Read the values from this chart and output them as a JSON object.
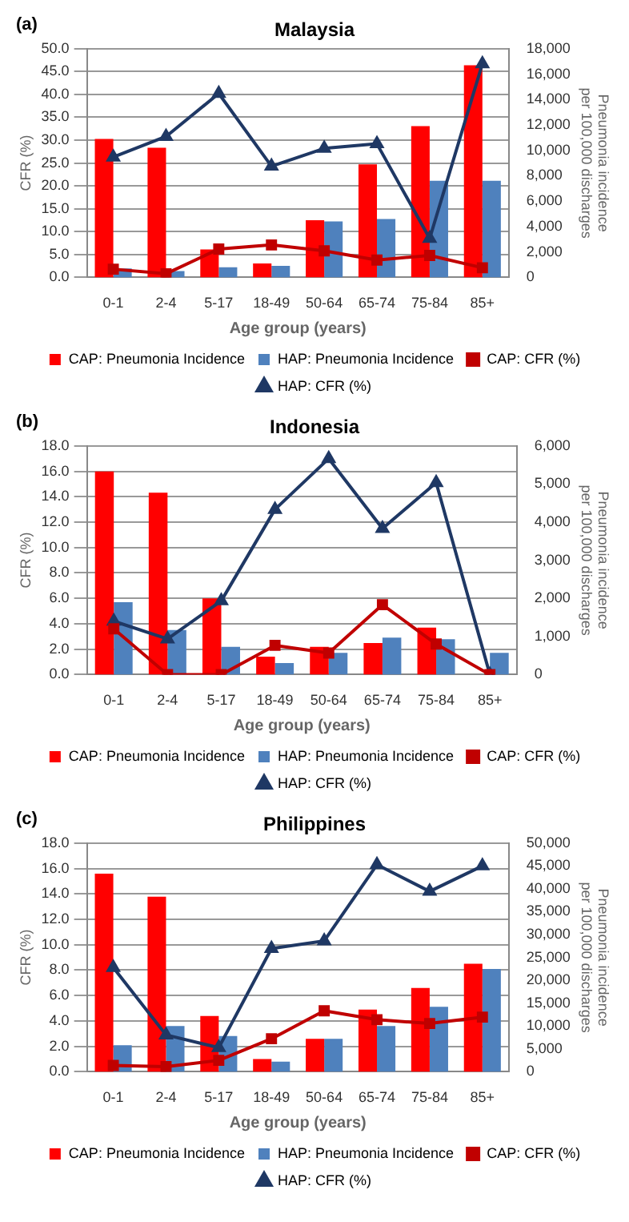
{
  "chart_data": [
    {
      "type": "bar",
      "title": "Malaysia",
      "annotations": [
        "(a)"
      ],
      "xlabel": "Age group (years)",
      "ylabel": "CFR (%)",
      "y2label": "Pneumonia incidence\nper 100,000 discharges",
      "categories": [
        "0-1",
        "2-4",
        "5-17",
        "18-49",
        "50-64",
        "65-74",
        "75-84",
        "85+"
      ],
      "series": [
        {
          "name": "CAP: Pneumonia Incidence",
          "axis": "y2",
          "color": "#ff0000",
          "values": [
            10900,
            10200,
            2200,
            1100,
            4500,
            8900,
            11900,
            16700
          ]
        },
        {
          "name": "HAP: Pneumonia Incidence",
          "axis": "y2",
          "color": "#4f81bd",
          "values": [
            700,
            500,
            800,
            900,
            4400,
            4600,
            7600,
            7600
          ]
        },
        {
          "name": "CAP: CFR (%)",
          "type": "line",
          "axis": "y",
          "color": "#c00000",
          "marker": "square",
          "values": [
            1.8,
            0.8,
            6.2,
            7.1,
            5.8,
            3.8,
            4.8,
            2.1
          ]
        },
        {
          "name": "HAP: CFR (%)",
          "type": "line",
          "axis": "y",
          "color": "#1f3864",
          "marker": "triangle",
          "values": [
            26.3,
            30.8,
            40.2,
            24.3,
            28.2,
            29.2,
            8.5,
            46.7
          ]
        }
      ],
      "ylim": [
        0,
        50
      ],
      "yticks": [
        {
          "value": 0,
          "label": "0.0"
        },
        {
          "value": 5,
          "label": "5.0"
        },
        {
          "value": 10,
          "label": "10.0"
        },
        {
          "value": 15,
          "label": "15.0"
        },
        {
          "value": 20,
          "label": "20.0"
        },
        {
          "value": 25,
          "label": "25.0"
        },
        {
          "value": 30,
          "label": "30.0"
        },
        {
          "value": 35,
          "label": "35.0"
        },
        {
          "value": 40,
          "label": "40.0"
        },
        {
          "value": 45,
          "label": "45.0"
        },
        {
          "value": 50,
          "label": "50.0"
        }
      ],
      "y2lim": [
        0,
        18000
      ],
      "y2ticks": [
        {
          "value": 0,
          "label": "0"
        },
        {
          "value": 2000,
          "label": "2,000"
        },
        {
          "value": 4000,
          "label": "4,000"
        },
        {
          "value": 6000,
          "label": "6,000"
        },
        {
          "value": 8000,
          "label": "8,000"
        },
        {
          "value": 10000,
          "label": "10,000"
        },
        {
          "value": 12000,
          "label": "12,000"
        },
        {
          "value": 14000,
          "label": "14,000"
        },
        {
          "value": 16000,
          "label": "16,000"
        },
        {
          "value": 18000,
          "label": "18,000"
        }
      ],
      "grid": "y",
      "legend": "bottom"
    },
    {
      "type": "bar",
      "title": "Indonesia",
      "annotations": [
        "(b)"
      ],
      "xlabel": "Age group (years)",
      "ylabel": "CFR (%)",
      "y2label": "Pneumonia incidence\nper 100,000 discharges",
      "categories": [
        "0-1",
        "2-4",
        "5-17",
        "18-49",
        "50-64",
        "65-74",
        "75-84",
        "85+"
      ],
      "series": [
        {
          "name": "CAP: Pneumonia Incidence",
          "axis": "y2",
          "color": "#ff0000",
          "values": [
            5330,
            4770,
            2000,
            470,
            730,
            830,
            1230,
            null
          ]
        },
        {
          "name": "HAP: Pneumonia Incidence",
          "axis": "y2",
          "color": "#4f81bd",
          "values": [
            1900,
            1170,
            730,
            300,
            570,
            970,
            930,
            570
          ]
        },
        {
          "name": "CAP: CFR (%)",
          "type": "line",
          "axis": "y",
          "color": "#c00000",
          "marker": "square",
          "values": [
            3.6,
            0,
            0,
            2.3,
            1.7,
            5.5,
            2.4,
            0
          ]
        },
        {
          "name": "HAP: CFR (%)",
          "type": "line",
          "axis": "y",
          "color": "#1f3864",
          "marker": "triangle",
          "values": [
            4.2,
            2.8,
            5.8,
            13.0,
            17.0,
            11.5,
            15.1,
            0
          ]
        }
      ],
      "ylim": [
        0,
        18
      ],
      "yticks": [
        {
          "value": 0,
          "label": "0.0"
        },
        {
          "value": 2,
          "label": "2.0"
        },
        {
          "value": 4,
          "label": "4.0"
        },
        {
          "value": 6,
          "label": "6.0"
        },
        {
          "value": 8,
          "label": "8.0"
        },
        {
          "value": 10,
          "label": "10.0"
        },
        {
          "value": 12,
          "label": "12.0"
        },
        {
          "value": 14,
          "label": "14.0"
        },
        {
          "value": 16,
          "label": "16.0"
        },
        {
          "value": 18,
          "label": "18.0"
        }
      ],
      "y2lim": [
        0,
        6000
      ],
      "y2ticks": [
        {
          "value": 0,
          "label": "0"
        },
        {
          "value": 1000,
          "label": "1,000"
        },
        {
          "value": 2000,
          "label": "2,000"
        },
        {
          "value": 3000,
          "label": "3,000"
        },
        {
          "value": 4000,
          "label": "4,000"
        },
        {
          "value": 5000,
          "label": "5,000"
        },
        {
          "value": 6000,
          "label": "6,000"
        }
      ],
      "grid": "y",
      "legend": "bottom"
    },
    {
      "type": "bar",
      "title": "Philippines",
      "annotations": [
        "(c)"
      ],
      "xlabel": "Age group (years)",
      "ylabel": "CFR (%)",
      "y2label": "Pneumonia incidence\nper 100,000 discharges",
      "categories": [
        "0-1",
        "2-4",
        "5-17",
        "18-49",
        "50-64",
        "65-74",
        "75-84",
        "85+"
      ],
      "series": [
        {
          "name": "CAP: Pneumonia Incidence",
          "axis": "y2",
          "color": "#ff0000",
          "values": [
            43300,
            38300,
            12200,
            2800,
            7200,
            13600,
            18300,
            23600
          ]
        },
        {
          "name": "HAP: Pneumonia Incidence",
          "axis": "y2",
          "color": "#4f81bd",
          "values": [
            5800,
            10000,
            7800,
            2200,
            7200,
            10000,
            14200,
            22500
          ]
        },
        {
          "name": "CAP: CFR (%)",
          "type": "line",
          "axis": "y",
          "color": "#c00000",
          "marker": "square",
          "values": [
            0.5,
            0.4,
            0.9,
            2.6,
            4.8,
            4.1,
            3.8,
            4.3
          ]
        },
        {
          "name": "HAP: CFR (%)",
          "type": "line",
          "axis": "y",
          "color": "#1f3864",
          "marker": "triangle",
          "values": [
            8.2,
            2.9,
            1.9,
            9.7,
            10.3,
            16.3,
            14.2,
            16.2
          ]
        }
      ],
      "ylim": [
        0,
        18
      ],
      "yticks": [
        {
          "value": 0,
          "label": "0.0"
        },
        {
          "value": 2,
          "label": "2.0"
        },
        {
          "value": 4,
          "label": "4.0"
        },
        {
          "value": 6,
          "label": "6.0"
        },
        {
          "value": 8,
          "label": "8.0"
        },
        {
          "value": 10,
          "label": "10.0"
        },
        {
          "value": 12,
          "label": "12.0"
        },
        {
          "value": 14,
          "label": "14.0"
        },
        {
          "value": 16,
          "label": "16.0"
        },
        {
          "value": 18,
          "label": "18.0"
        }
      ],
      "y2lim": [
        0,
        50000
      ],
      "y2ticks": [
        {
          "value": 0,
          "label": "0"
        },
        {
          "value": 5000,
          "label": "5,000"
        },
        {
          "value": 10000,
          "label": "10,000"
        },
        {
          "value": 15000,
          "label": "15,000"
        },
        {
          "value": 20000,
          "label": "20,000"
        },
        {
          "value": 25000,
          "label": "25,000"
        },
        {
          "value": 30000,
          "label": "30,000"
        },
        {
          "value": 35000,
          "label": "35,000"
        },
        {
          "value": 40000,
          "label": "40,000"
        },
        {
          "value": 45000,
          "label": "45,000"
        },
        {
          "value": 50000,
          "label": "50,000"
        }
      ],
      "grid": "y",
      "legend": "bottom"
    }
  ]
}
